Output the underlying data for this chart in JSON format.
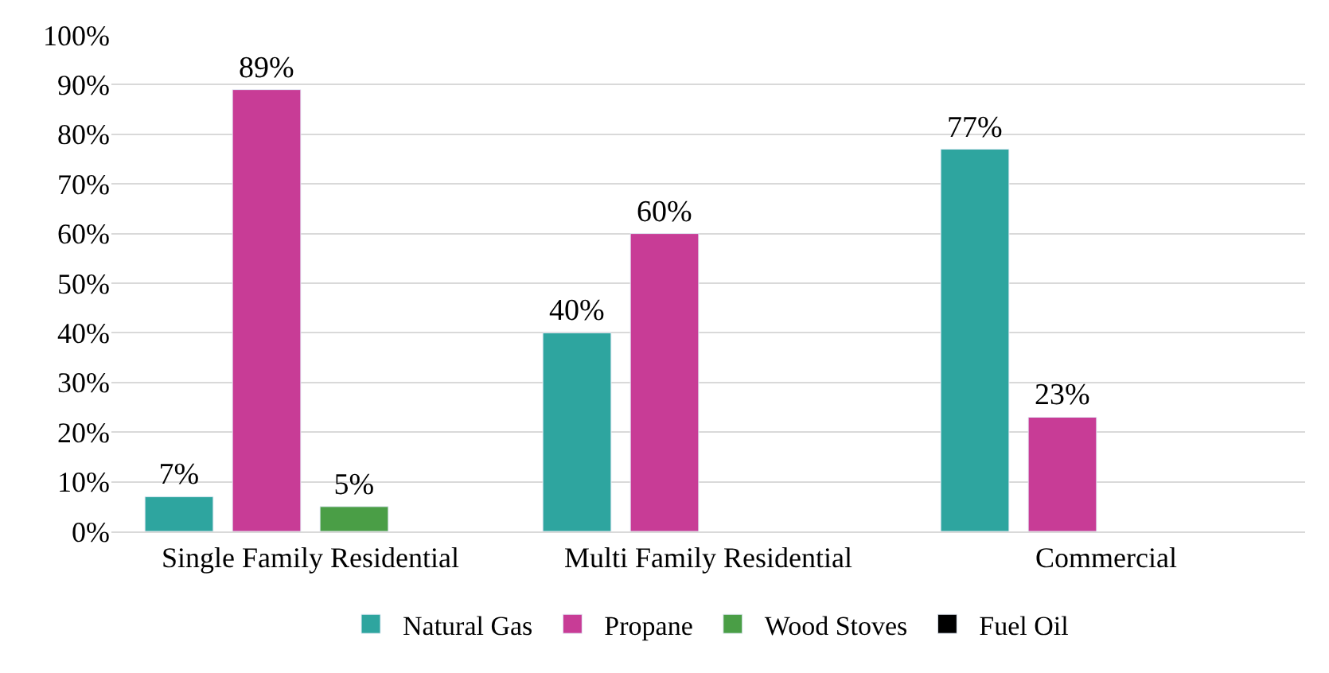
{
  "chart_data": {
    "type": "bar",
    "categories": [
      "Single Family Residential",
      "Multi Family Residential",
      "Commercial"
    ],
    "series": [
      {
        "name": "Natural Gas",
        "color": "#2ea59f",
        "values": [
          7,
          40,
          77
        ],
        "value_labels": [
          "7%",
          "40%",
          "77%"
        ]
      },
      {
        "name": "Propane",
        "color": "#c83c96",
        "values": [
          89,
          60,
          23
        ],
        "value_labels": [
          "89%",
          "60%",
          "23%"
        ]
      },
      {
        "name": "Wood Stoves",
        "color": "#4a9e46",
        "values": [
          5,
          null,
          null
        ],
        "value_labels": [
          "5%",
          null,
          null
        ]
      },
      {
        "name": "Fuel Oil",
        "color": "#000000",
        "values": [
          null,
          null,
          null
        ],
        "value_labels": [
          null,
          null,
          null
        ]
      }
    ],
    "ylim": [
      0,
      100
    ],
    "yticks": [
      {
        "value": 0,
        "label": "0%"
      },
      {
        "value": 10,
        "label": "10%"
      },
      {
        "value": 20,
        "label": "20%"
      },
      {
        "value": 30,
        "label": "30%"
      },
      {
        "value": 40,
        "label": "40%"
      },
      {
        "value": 50,
        "label": "50%"
      },
      {
        "value": 60,
        "label": "60%"
      },
      {
        "value": 70,
        "label": "70%"
      },
      {
        "value": 80,
        "label": "80%"
      },
      {
        "value": 90,
        "label": "90%"
      },
      {
        "value": 100,
        "label": "100%"
      }
    ],
    "grid": "y",
    "legend": "bottom"
  }
}
